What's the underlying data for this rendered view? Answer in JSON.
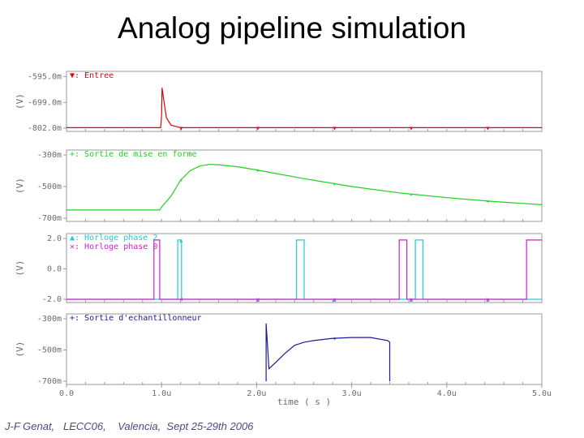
{
  "title": "Analog pipeline simulation",
  "footer": "J-F Genat,   LECC06,    Valencia,  Sept 25-29th 2006",
  "chart_data": {
    "type": "line",
    "x_axis": {
      "label": "time ( s )",
      "range": [
        0.0,
        5.0
      ],
      "ticks": [
        0.0,
        1.0,
        2.0,
        3.0,
        4.0,
        5.0
      ],
      "tick_labels": [
        "0.0",
        "1.0u",
        "2.0u",
        "3.0u",
        "4.0u",
        "5.0u"
      ]
    },
    "panels": [
      {
        "ylabel": "(V)",
        "yrange": [
          -802.0,
          -594.0
        ],
        "tick_values": [
          -595.0,
          -699.0,
          -802.0
        ],
        "tick_labels": [
          "-595.0m",
          "-699.0m",
          "-802.0m"
        ],
        "series": [
          {
            "name": "Entree",
            "color": "#e8000b",
            "marker": "▼",
            "x": [
              0.0,
              0.99,
              1.0,
              1.005,
              1.02,
              1.05,
              1.1,
              1.2,
              5.0
            ],
            "y": [
              -800,
              -800,
              -755,
              -640,
              -680,
              -760,
              -790,
              -800,
              -800
            ]
          }
        ]
      },
      {
        "ylabel": "(V)",
        "yrange": [
          -700,
          -300
        ],
        "tick_values": [
          -300,
          -500,
          -700
        ],
        "tick_labels": [
          "-300m",
          "-500m",
          "-700m"
        ],
        "series": [
          {
            "name": "Sortie de mise en forme",
            "color": "#1ed11e",
            "marker": "+",
            "x": [
              0.0,
              0.98,
              1.0,
              1.1,
              1.2,
              1.3,
              1.4,
              1.5,
              1.6,
              1.8,
              2.0,
              2.5,
              3.0,
              3.5,
              4.0,
              4.5,
              5.0
            ],
            "y": [
              -648,
              -648,
              -630,
              -560,
              -460,
              -400,
              -370,
              -360,
              -362,
              -375,
              -395,
              -450,
              -500,
              -540,
              -570,
              -595,
              -615
            ]
          }
        ]
      },
      {
        "ylabel": "(V)",
        "yrange": [
          -2.0,
          2.0
        ],
        "tick_values": [
          2.0,
          0.0,
          -2.0
        ],
        "tick_labels": [
          "2.0",
          "0.0",
          "-2.0"
        ],
        "series": [
          {
            "name": "Horloge phase 2",
            "color": "#18d0d0",
            "marker": "▲",
            "x": [
              0.0,
              1.17,
              1.17,
              1.21,
              1.21,
              2.42,
              2.42,
              2.5,
              2.5,
              3.67,
              3.67,
              3.75,
              3.75,
              5.0
            ],
            "y": [
              -2,
              -2,
              1.9,
              1.9,
              -2,
              -2,
              1.9,
              1.9,
              -2,
              -2,
              1.9,
              1.9,
              -2,
              -2
            ]
          },
          {
            "name": "Horloge phase 0",
            "color": "#d11ed1",
            "marker": "✕",
            "x": [
              0.0,
              0.92,
              0.92,
              0.98,
              0.98,
              3.5,
              3.5,
              3.58,
              3.58,
              4.84,
              4.84,
              4.92,
              5.0
            ],
            "y": [
              -2,
              -2,
              1.9,
              1.9,
              -2,
              -2,
              1.9,
              1.9,
              -2,
              -2,
              1.9,
              1.9,
              1.9
            ]
          }
        ]
      },
      {
        "ylabel": "(V)",
        "yrange": [
          -700,
          -300
        ],
        "tick_values": [
          -300,
          -500,
          -700
        ],
        "tick_labels": [
          "-300m",
          "-500m",
          "-700m"
        ],
        "series": [
          {
            "name": "Sortie d'echantillonneur",
            "color": "#1a1a9a",
            "marker": "+",
            "x": [
              2.1,
              2.1,
              2.13,
              2.2,
              2.3,
              2.4,
              2.5,
              2.6,
              2.8,
              3.0,
              3.2,
              3.38,
              3.4,
              3.4
            ],
            "y": [
              -700,
              -330,
              -620,
              -580,
              -520,
              -470,
              -450,
              -440,
              -425,
              -420,
              -420,
              -440,
              -450,
              -700
            ]
          }
        ]
      }
    ]
  }
}
